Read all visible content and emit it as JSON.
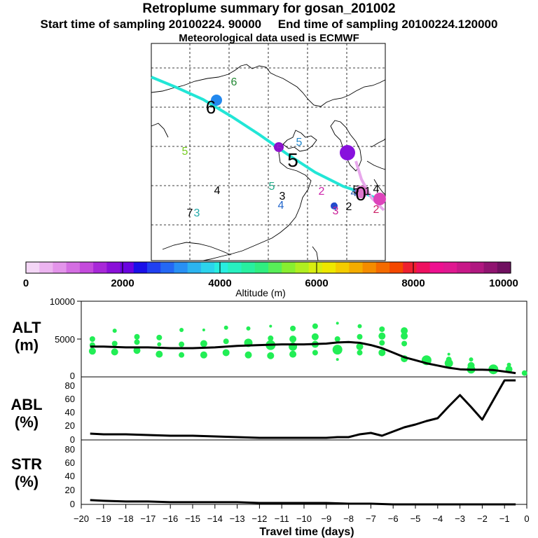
{
  "header": {
    "title": "Retroplume summary for gosan_201002",
    "start_label": "Start time of sampling 20100224. 90000",
    "end_label": "End time of sampling 20100224.120000",
    "met_label": "Meteorological data used is ECMWF"
  },
  "colors": {
    "trajectory": "#22e6d6",
    "trajectory_end": "#e8a8ec",
    "scatter": "#22ee55",
    "line": "#000000"
  },
  "map": {
    "labels": [
      {
        "text": "6",
        "color": "#228833"
      },
      {
        "text": "6",
        "color": "#000000"
      },
      {
        "text": "5",
        "color": "#77cc22"
      },
      {
        "text": "5",
        "color": "#2288cc"
      },
      {
        "text": "5",
        "color": "#000000"
      },
      {
        "text": "5",
        "color": "#9922cc"
      },
      {
        "text": "4",
        "color": "#000000"
      },
      {
        "text": "5",
        "color": "#22aa88"
      },
      {
        "text": "3",
        "color": "#000000"
      },
      {
        "text": "4",
        "color": "#2266cc"
      },
      {
        "text": "2",
        "color": "#cc22aa"
      },
      {
        "text": "4",
        "color": "#2255cc"
      },
      {
        "text": "3",
        "color": "#cc2299"
      },
      {
        "text": "2",
        "color": "#000000"
      },
      {
        "text": "4",
        "color": "#2255aa"
      },
      {
        "text": "0",
        "color": "#000000"
      },
      {
        "text": "1",
        "color": "#000000"
      },
      {
        "text": "4",
        "color": "#000000"
      },
      {
        "text": "2",
        "color": "#cc2266"
      },
      {
        "text": "7",
        "color": "#000000"
      },
      {
        "text": "3",
        "color": "#22aaaa"
      },
      {
        "text": "5",
        "color": "#000000"
      }
    ]
  },
  "colorbar": {
    "ticks": [
      "0",
      "2000",
      "4000",
      "6000",
      "8000",
      "10000"
    ],
    "label": "Altitude (m)"
  },
  "panels": {
    "alt": {
      "label1": "ALT",
      "label2": "(m)",
      "yticks": [
        "0",
        "5000",
        "10000"
      ]
    },
    "abl": {
      "label1": "ABL",
      "label2": "(%)",
      "yticks": [
        "0",
        "20",
        "40",
        "60",
        "80"
      ]
    },
    "str": {
      "label1": "STR",
      "label2": "(%)",
      "yticks": [
        "0",
        "20",
        "40",
        "60",
        "80"
      ]
    }
  },
  "xaxis": {
    "ticks": [
      "−20",
      "−19",
      "−18",
      "−17",
      "−16",
      "−15",
      "−14",
      "−13",
      "−12",
      "−11",
      "−10",
      "−9",
      "−8",
      "−7",
      "−6",
      "−5",
      "−4",
      "−3",
      "−2",
      "−1",
      "0"
    ],
    "label": "Travel time (days)"
  },
  "chart_data": [
    {
      "type": "line",
      "title": "ALT (m)",
      "xlabel": "Travel time (days)",
      "ylabel": "ALT (m)",
      "xlim": [
        -20,
        0
      ],
      "ylim": [
        0,
        10000
      ],
      "series": [
        {
          "name": "mean altitude",
          "x": [
            -19.6,
            -19,
            -18,
            -17,
            -16,
            -15,
            -14,
            -13,
            -12,
            -11,
            -10,
            -9,
            -8.5,
            -8,
            -7.5,
            -7,
            -6.5,
            -6,
            -5.5,
            -5,
            -4.5,
            -4,
            -3.5,
            -3,
            -2.5,
            -2,
            -1.5,
            -1,
            -0.5
          ],
          "y": [
            4000,
            4000,
            3900,
            3900,
            3800,
            3800,
            3900,
            4100,
            4200,
            4300,
            4300,
            4400,
            4550,
            4600,
            4500,
            4200,
            3800,
            3200,
            2600,
            2200,
            1800,
            1500,
            1200,
            1000,
            950,
            950,
            900,
            700,
            500
          ]
        }
      ],
      "scatter": [
        {
          "x": -19.5,
          "y": 5000,
          "size": 4
        },
        {
          "x": -19.5,
          "y": 4200,
          "size": 4
        },
        {
          "x": -19.5,
          "y": 3400,
          "size": 5
        },
        {
          "x": -18.5,
          "y": 6100,
          "size": 3
        },
        {
          "x": -18.5,
          "y": 4400,
          "size": 4
        },
        {
          "x": -18.5,
          "y": 3300,
          "size": 5
        },
        {
          "x": -17.5,
          "y": 5300,
          "size": 4
        },
        {
          "x": -17.5,
          "y": 4600,
          "size": 4
        },
        {
          "x": -17.5,
          "y": 3500,
          "size": 5
        },
        {
          "x": -16.5,
          "y": 5200,
          "size": 4
        },
        {
          "x": -16.5,
          "y": 4300,
          "size": 3
        },
        {
          "x": -16.5,
          "y": 3000,
          "size": 5
        },
        {
          "x": -15.5,
          "y": 6200,
          "size": 3
        },
        {
          "x": -15.5,
          "y": 4300,
          "size": 4
        },
        {
          "x": -15.5,
          "y": 2900,
          "size": 4
        },
        {
          "x": -14.5,
          "y": 6200,
          "size": 2
        },
        {
          "x": -14.5,
          "y": 4400,
          "size": 5
        },
        {
          "x": -14.5,
          "y": 2900,
          "size": 5
        },
        {
          "x": -13.5,
          "y": 6500,
          "size": 3
        },
        {
          "x": -13.5,
          "y": 4700,
          "size": 4
        },
        {
          "x": -13.5,
          "y": 3200,
          "size": 5
        },
        {
          "x": -12.5,
          "y": 6400,
          "size": 3
        },
        {
          "x": -12.5,
          "y": 4500,
          "size": 6
        },
        {
          "x": -12.5,
          "y": 2900,
          "size": 5
        },
        {
          "x": -11.5,
          "y": 6700,
          "size": 2
        },
        {
          "x": -11.5,
          "y": 5100,
          "size": 4
        },
        {
          "x": -11.5,
          "y": 4200,
          "size": 7
        },
        {
          "x": -11.5,
          "y": 2800,
          "size": 5
        },
        {
          "x": -10.5,
          "y": 6400,
          "size": 4
        },
        {
          "x": -10.5,
          "y": 5000,
          "size": 5
        },
        {
          "x": -10.5,
          "y": 4000,
          "size": 6
        },
        {
          "x": -10.5,
          "y": 3000,
          "size": 5
        },
        {
          "x": -9.5,
          "y": 6700,
          "size": 4
        },
        {
          "x": -9.5,
          "y": 5300,
          "size": 5
        },
        {
          "x": -9.5,
          "y": 4300,
          "size": 5
        },
        {
          "x": -9.5,
          "y": 3200,
          "size": 4
        },
        {
          "x": -8.5,
          "y": 7100,
          "size": 2
        },
        {
          "x": -8.5,
          "y": 5000,
          "size": 4
        },
        {
          "x": -8.5,
          "y": 3600,
          "size": 7
        },
        {
          "x": -8.5,
          "y": 2300,
          "size": 2
        },
        {
          "x": -7.5,
          "y": 6700,
          "size": 3
        },
        {
          "x": -7.5,
          "y": 5300,
          "size": 4
        },
        {
          "x": -7.5,
          "y": 4000,
          "size": 5
        },
        {
          "x": -7.5,
          "y": 3200,
          "size": 4
        },
        {
          "x": -6.5,
          "y": 6300,
          "size": 4
        },
        {
          "x": -6.5,
          "y": 5400,
          "size": 5
        },
        {
          "x": -6.5,
          "y": 4500,
          "size": 4
        },
        {
          "x": -6.5,
          "y": 3200,
          "size": 5
        },
        {
          "x": -5.5,
          "y": 6100,
          "size": 5
        },
        {
          "x": -5.5,
          "y": 5400,
          "size": 5
        },
        {
          "x": -5.5,
          "y": 4400,
          "size": 4
        },
        {
          "x": -5.5,
          "y": 2400,
          "size": 5
        },
        {
          "x": -4.5,
          "y": 2200,
          "size": 7
        },
        {
          "x": -3.5,
          "y": 3000,
          "size": 2
        },
        {
          "x": -3.5,
          "y": 2300,
          "size": 4
        },
        {
          "x": -3.5,
          "y": 1800,
          "size": 6
        },
        {
          "x": -2.5,
          "y": 2300,
          "size": 3
        },
        {
          "x": -2.5,
          "y": 1500,
          "size": 5
        },
        {
          "x": -2.5,
          "y": 1000,
          "size": 6
        },
        {
          "x": -1.5,
          "y": 1000,
          "size": 7
        },
        {
          "x": -0.8,
          "y": 1600,
          "size": 3
        },
        {
          "x": -0.8,
          "y": 1000,
          "size": 5
        },
        {
          "x": -0.1,
          "y": 500,
          "size": 4
        }
      ]
    },
    {
      "type": "line",
      "title": "ABL (%)",
      "xlabel": "Travel time (days)",
      "ylabel": "ABL (%)",
      "xlim": [
        -20,
        0
      ],
      "ylim": [
        0,
        90
      ],
      "series": [
        {
          "name": "ABL",
          "x": [
            -19.6,
            -19,
            -18,
            -17,
            -16,
            -15,
            -14,
            -13,
            -12,
            -11,
            -10,
            -9,
            -8.5,
            -8,
            -7.5,
            -7,
            -6.5,
            -6,
            -5.5,
            -5,
            -4.5,
            -4,
            -3.5,
            -3,
            -2.5,
            -2,
            -1.5,
            -1,
            -0.5
          ],
          "y": [
            9,
            8,
            8,
            7,
            6,
            6,
            5,
            4,
            3,
            3,
            3,
            3,
            4,
            4,
            8,
            10,
            6,
            12,
            18,
            22,
            27,
            31,
            48,
            64,
            47,
            29,
            57,
            85,
            85
          ]
        }
      ]
    },
    {
      "type": "line",
      "title": "STR (%)",
      "xlabel": "Travel time (days)",
      "ylabel": "STR (%)",
      "xlim": [
        -20,
        0
      ],
      "ylim": [
        0,
        90
      ],
      "series": [
        {
          "name": "STR",
          "x": [
            -19.6,
            -19,
            -18,
            -17,
            -16,
            -15,
            -14,
            -13,
            -12,
            -11,
            -10,
            -9,
            -8,
            -7,
            -6,
            -5,
            -4,
            -3,
            -2,
            -1,
            -0.5
          ],
          "y": [
            6,
            5,
            4,
            4,
            3,
            3,
            3,
            3,
            2,
            2,
            2,
            2,
            1,
            1,
            0,
            0,
            0,
            0,
            0,
            0,
            0
          ]
        }
      ]
    }
  ]
}
